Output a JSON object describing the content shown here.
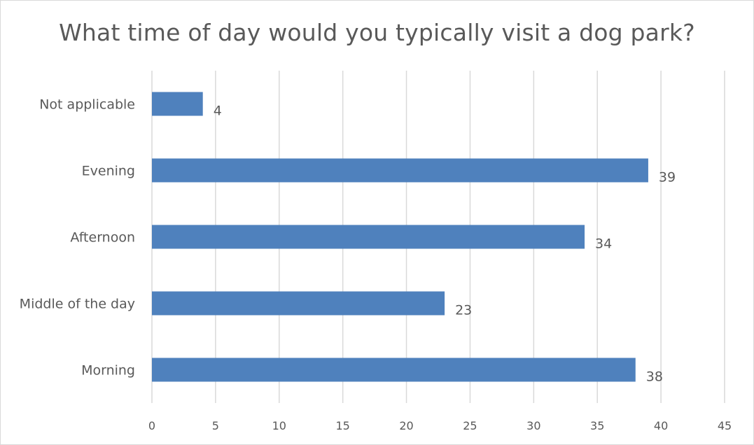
{
  "chart_data": {
    "type": "bar",
    "orientation": "horizontal",
    "title": "What time of day would you typically visit a dog park?",
    "categories": [
      "Not applicable",
      "Evening",
      "Afternoon",
      "Middle of the day",
      "Morning"
    ],
    "values": [
      4,
      39,
      34,
      23,
      38
    ],
    "xlim": [
      0,
      45
    ],
    "xticks": [
      0,
      5,
      10,
      15,
      20,
      25,
      30,
      35,
      40,
      45
    ],
    "grid": "vertical",
    "legend": "none",
    "data_labels": true,
    "bar_color": "#4f81bd"
  }
}
